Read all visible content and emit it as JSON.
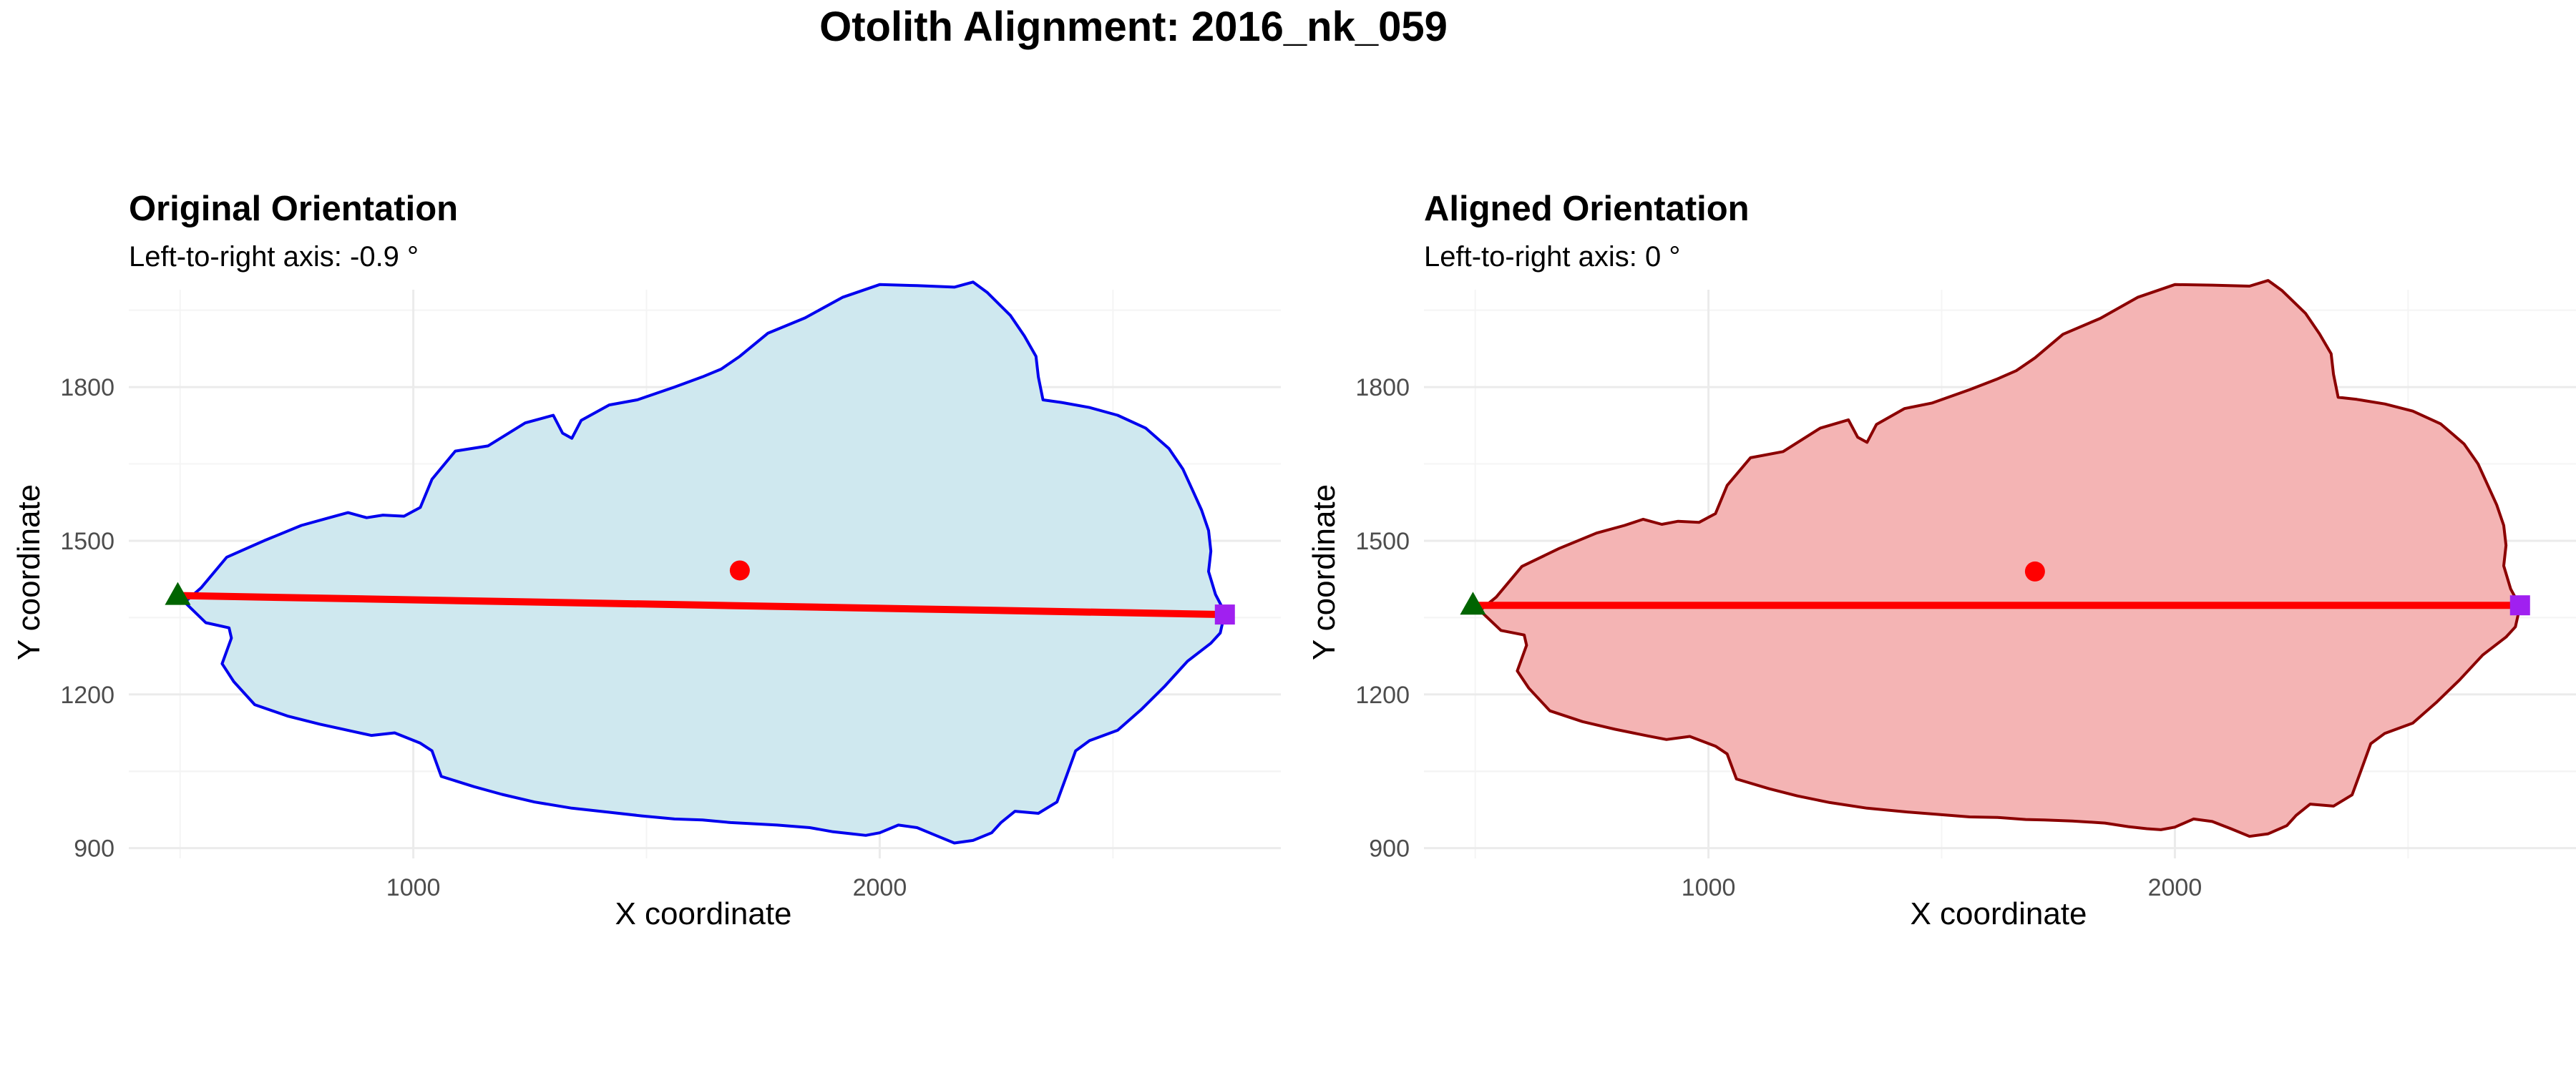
{
  "figure": {
    "title": "Otolith Alignment: 2016_nk_059"
  },
  "chart_data": [
    {
      "type": "scatter",
      "title": "Original Orientation",
      "subtitle": "Left-to-right axis: -0.9 °",
      "xlabel": "X coordinate",
      "ylabel": "Y coordinate",
      "xlim": [
        390,
        2860
      ],
      "ylim": [
        880,
        1990
      ],
      "xticks": [
        1000,
        2000
      ],
      "xtick_labels": [
        "1000",
        "2000"
      ],
      "yticks": [
        900,
        1200,
        1500,
        1800
      ],
      "ytick_labels": [
        "900",
        "1200",
        "1500",
        "1800"
      ],
      "grid": true,
      "outline_fill": "#cfe8ef",
      "outline_stroke": "#0000ee",
      "outline": [
        [
          545,
          1408
        ],
        [
          600,
          1468
        ],
        [
          680,
          1500
        ],
        [
          760,
          1530
        ],
        [
          820,
          1545
        ],
        [
          860,
          1555
        ],
        [
          900,
          1545
        ],
        [
          935,
          1550
        ],
        [
          980,
          1548
        ],
        [
          1015,
          1565
        ],
        [
          1040,
          1620
        ],
        [
          1090,
          1675
        ],
        [
          1160,
          1685
        ],
        [
          1240,
          1730
        ],
        [
          1300,
          1745
        ],
        [
          1320,
          1710
        ],
        [
          1340,
          1700
        ],
        [
          1360,
          1735
        ],
        [
          1420,
          1765
        ],
        [
          1480,
          1775
        ],
        [
          1560,
          1800
        ],
        [
          1620,
          1820
        ],
        [
          1660,
          1835
        ],
        [
          1700,
          1860
        ],
        [
          1760,
          1905
        ],
        [
          1840,
          1935
        ],
        [
          1920,
          1975
        ],
        [
          2000,
          2000
        ],
        [
          2080,
          1998
        ],
        [
          2160,
          1995
        ],
        [
          2200,
          2005
        ],
        [
          2230,
          1985
        ],
        [
          2280,
          1940
        ],
        [
          2310,
          1900
        ],
        [
          2335,
          1860
        ],
        [
          2340,
          1820
        ],
        [
          2350,
          1775
        ],
        [
          2390,
          1770
        ],
        [
          2450,
          1760
        ],
        [
          2510,
          1745
        ],
        [
          2570,
          1720
        ],
        [
          2620,
          1680
        ],
        [
          2650,
          1640
        ],
        [
          2670,
          1600
        ],
        [
          2690,
          1560
        ],
        [
          2705,
          1520
        ],
        [
          2710,
          1480
        ],
        [
          2705,
          1440
        ],
        [
          2720,
          1395
        ],
        [
          2740,
          1360
        ],
        [
          2730,
          1320
        ],
        [
          2710,
          1300
        ],
        [
          2660,
          1265
        ],
        [
          2610,
          1215
        ],
        [
          2560,
          1170
        ],
        [
          2510,
          1130
        ],
        [
          2450,
          1110
        ],
        [
          2420,
          1090
        ],
        [
          2400,
          1040
        ],
        [
          2380,
          990
        ],
        [
          2340,
          968
        ],
        [
          2290,
          972
        ],
        [
          2260,
          950
        ],
        [
          2240,
          930
        ],
        [
          2200,
          915
        ],
        [
          2160,
          910
        ],
        [
          2120,
          925
        ],
        [
          2080,
          940
        ],
        [
          2040,
          945
        ],
        [
          2000,
          930
        ],
        [
          1970,
          925
        ],
        [
          1940,
          928
        ],
        [
          1900,
          932
        ],
        [
          1850,
          940
        ],
        [
          1780,
          945
        ],
        [
          1720,
          948
        ],
        [
          1680,
          950
        ],
        [
          1620,
          955
        ],
        [
          1560,
          957
        ],
        [
          1490,
          963
        ],
        [
          1420,
          970
        ],
        [
          1340,
          978
        ],
        [
          1260,
          990
        ],
        [
          1190,
          1005
        ],
        [
          1130,
          1020
        ],
        [
          1060,
          1040
        ],
        [
          1040,
          1090
        ],
        [
          1015,
          1105
        ],
        [
          960,
          1125
        ],
        [
          910,
          1120
        ],
        [
          870,
          1128
        ],
        [
          800,
          1142
        ],
        [
          730,
          1158
        ],
        [
          660,
          1180
        ],
        [
          615,
          1225
        ],
        [
          590,
          1260
        ],
        [
          610,
          1310
        ],
        [
          605,
          1330
        ],
        [
          555,
          1340
        ],
        [
          510,
          1380
        ]
      ],
      "axis_line": {
        "start": [
          495,
          1393
        ],
        "end": [
          2740,
          1356
        ],
        "color": "#ff0000"
      },
      "centroid": {
        "x": 1700,
        "y": 1442,
        "color": "#ff0000"
      },
      "start_point": {
        "x": 495,
        "y": 1393,
        "shape": "triangle",
        "color": "#006400"
      },
      "end_point": {
        "x": 2740,
        "y": 1356,
        "shape": "square",
        "color": "#a020f0"
      }
    },
    {
      "type": "scatter",
      "title": "Aligned Orientation",
      "subtitle": "Left-to-right axis: 0 °",
      "xlabel": "X coordinate",
      "ylabel": "Y coordinate",
      "xlim": [
        390,
        2860
      ],
      "ylim": [
        880,
        1990
      ],
      "xticks": [
        1000,
        2000
      ],
      "xtick_labels": [
        "1000",
        "2000"
      ],
      "yticks": [
        900,
        1200,
        1500,
        1800
      ],
      "ytick_labels": [
        "900",
        "1200",
        "1500",
        "1800"
      ],
      "grid": true,
      "outline_fill": "#f4b4b4",
      "outline_stroke": "#8b0000",
      "outline": [
        [
          545,
          1390
        ],
        [
          600,
          1450
        ],
        [
          680,
          1485
        ],
        [
          760,
          1515
        ],
        [
          820,
          1530
        ],
        [
          860,
          1542
        ],
        [
          900,
          1532
        ],
        [
          935,
          1538
        ],
        [
          980,
          1536
        ],
        [
          1015,
          1553
        ],
        [
          1040,
          1608
        ],
        [
          1090,
          1662
        ],
        [
          1160,
          1674
        ],
        [
          1240,
          1720
        ],
        [
          1300,
          1736
        ],
        [
          1320,
          1702
        ],
        [
          1340,
          1692
        ],
        [
          1360,
          1727
        ],
        [
          1420,
          1758
        ],
        [
          1480,
          1769
        ],
        [
          1560,
          1795
        ],
        [
          1620,
          1816
        ],
        [
          1660,
          1832
        ],
        [
          1700,
          1857
        ],
        [
          1760,
          1903
        ],
        [
          1840,
          1934
        ],
        [
          1920,
          1975
        ],
        [
          2000,
          2000
        ],
        [
          2080,
          1999
        ],
        [
          2160,
          1997
        ],
        [
          2200,
          2008
        ],
        [
          2230,
          1988
        ],
        [
          2280,
          1944
        ],
        [
          2310,
          1904
        ],
        [
          2335,
          1865
        ],
        [
          2340,
          1825
        ],
        [
          2350,
          1780
        ],
        [
          2390,
          1776
        ],
        [
          2450,
          1767
        ],
        [
          2510,
          1753
        ],
        [
          2570,
          1728
        ],
        [
          2620,
          1689
        ],
        [
          2650,
          1650
        ],
        [
          2670,
          1610
        ],
        [
          2690,
          1570
        ],
        [
          2705,
          1530
        ],
        [
          2710,
          1491
        ],
        [
          2705,
          1451
        ],
        [
          2720,
          1406
        ],
        [
          2740,
          1372
        ],
        [
          2730,
          1332
        ],
        [
          2710,
          1312
        ],
        [
          2660,
          1277
        ],
        [
          2610,
          1228
        ],
        [
          2560,
          1184
        ],
        [
          2510,
          1144
        ],
        [
          2450,
          1124
        ],
        [
          2420,
          1104
        ],
        [
          2400,
          1054
        ],
        [
          2380,
          1004
        ],
        [
          2340,
          982
        ],
        [
          2290,
          986
        ],
        [
          2260,
          964
        ],
        [
          2240,
          944
        ],
        [
          2200,
          928
        ],
        [
          2160,
          923
        ],
        [
          2120,
          938
        ],
        [
          2080,
          952
        ],
        [
          2040,
          957
        ],
        [
          2000,
          941
        ],
        [
          1970,
          936
        ],
        [
          1940,
          938
        ],
        [
          1900,
          942
        ],
        [
          1850,
          949
        ],
        [
          1780,
          953
        ],
        [
          1720,
          955
        ],
        [
          1680,
          956
        ],
        [
          1620,
          960
        ],
        [
          1560,
          961
        ],
        [
          1490,
          966
        ],
        [
          1420,
          971
        ],
        [
          1340,
          978
        ],
        [
          1260,
          989
        ],
        [
          1190,
          1002
        ],
        [
          1130,
          1016
        ],
        [
          1060,
          1035
        ],
        [
          1040,
          1084
        ],
        [
          1015,
          1099
        ],
        [
          960,
          1118
        ],
        [
          910,
          1112
        ],
        [
          870,
          1119
        ],
        [
          800,
          1132
        ],
        [
          730,
          1147
        ],
        [
          660,
          1168
        ],
        [
          615,
          1212
        ],
        [
          590,
          1246
        ],
        [
          610,
          1296
        ],
        [
          605,
          1316
        ],
        [
          555,
          1325
        ],
        [
          510,
          1364
        ]
      ],
      "axis_line": {
        "start": [
          495,
          1374
        ],
        "end": [
          2740,
          1374
        ],
        "color": "#ff0000"
      },
      "centroid": {
        "x": 1700,
        "y": 1440,
        "color": "#ff0000"
      },
      "start_point": {
        "x": 495,
        "y": 1374,
        "shape": "triangle",
        "color": "#006400"
      },
      "end_point": {
        "x": 2740,
        "y": 1374,
        "shape": "square",
        "color": "#a020f0"
      }
    }
  ]
}
